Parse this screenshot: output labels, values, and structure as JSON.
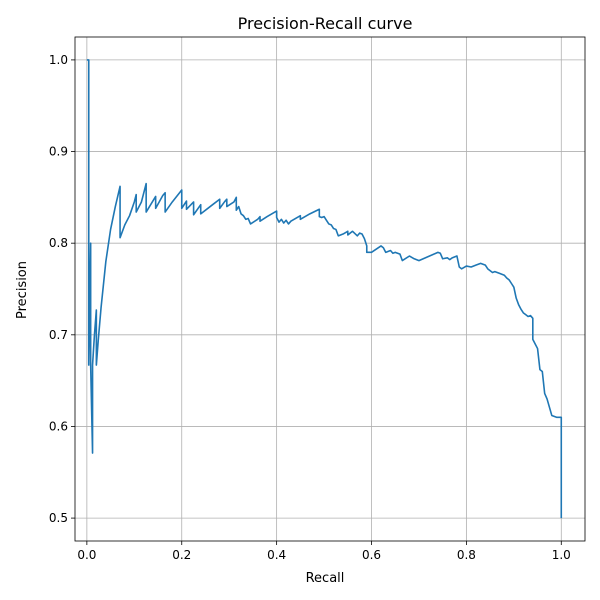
{
  "chart_data": {
    "type": "line",
    "title": "Precision-Recall curve",
    "xlabel": "Recall",
    "ylabel": "Precision",
    "xlim": [
      -0.025,
      1.05
    ],
    "ylim": [
      0.475,
      1.025
    ],
    "grid": true,
    "line_color": "#1f77b4",
    "xticks": [
      0.0,
      0.2,
      0.4,
      0.6,
      0.8,
      1.0
    ],
    "xtick_labels": [
      "0.0",
      "0.2",
      "0.4",
      "0.6",
      "0.8",
      "1.0"
    ],
    "yticks": [
      0.5,
      0.6,
      0.7,
      0.8,
      0.9,
      1.0
    ],
    "ytick_labels": [
      "0.5",
      "0.6",
      "0.7",
      "0.8",
      "0.9",
      "1.0"
    ],
    "series": [
      {
        "points": [
          [
            0.0,
            1.0
          ],
          [
            0.004,
            1.0
          ],
          [
            0.004,
            0.667
          ],
          [
            0.008,
            0.8
          ],
          [
            0.008,
            0.667
          ],
          [
            0.012,
            0.571
          ],
          [
            0.012,
            0.667
          ],
          [
            0.016,
            0.7
          ],
          [
            0.02,
            0.727
          ],
          [
            0.02,
            0.667
          ],
          [
            0.024,
            0.694
          ],
          [
            0.03,
            0.73
          ],
          [
            0.04,
            0.78
          ],
          [
            0.05,
            0.815
          ],
          [
            0.06,
            0.84
          ],
          [
            0.07,
            0.862
          ],
          [
            0.07,
            0.806
          ],
          [
            0.08,
            0.82
          ],
          [
            0.09,
            0.83
          ],
          [
            0.1,
            0.845
          ],
          [
            0.104,
            0.853
          ],
          [
            0.104,
            0.834
          ],
          [
            0.115,
            0.845
          ],
          [
            0.125,
            0.865
          ],
          [
            0.125,
            0.834
          ],
          [
            0.145,
            0.851
          ],
          [
            0.145,
            0.838
          ],
          [
            0.16,
            0.852
          ],
          [
            0.165,
            0.855
          ],
          [
            0.165,
            0.834
          ],
          [
            0.18,
            0.845
          ],
          [
            0.2,
            0.858
          ],
          [
            0.2,
            0.838
          ],
          [
            0.21,
            0.846
          ],
          [
            0.21,
            0.837
          ],
          [
            0.225,
            0.845
          ],
          [
            0.225,
            0.831
          ],
          [
            0.24,
            0.842
          ],
          [
            0.24,
            0.832
          ],
          [
            0.265,
            0.842
          ],
          [
            0.28,
            0.848
          ],
          [
            0.28,
            0.838
          ],
          [
            0.29,
            0.845
          ],
          [
            0.295,
            0.848
          ],
          [
            0.295,
            0.84
          ],
          [
            0.31,
            0.845
          ],
          [
            0.315,
            0.85
          ],
          [
            0.315,
            0.836
          ],
          [
            0.32,
            0.84
          ],
          [
            0.325,
            0.832
          ],
          [
            0.33,
            0.83
          ],
          [
            0.335,
            0.826
          ],
          [
            0.34,
            0.827
          ],
          [
            0.345,
            0.821
          ],
          [
            0.36,
            0.826
          ],
          [
            0.365,
            0.829
          ],
          [
            0.365,
            0.824
          ],
          [
            0.38,
            0.829
          ],
          [
            0.4,
            0.835
          ],
          [
            0.4,
            0.828
          ],
          [
            0.405,
            0.823
          ],
          [
            0.41,
            0.826
          ],
          [
            0.415,
            0.822
          ],
          [
            0.42,
            0.825
          ],
          [
            0.425,
            0.821
          ],
          [
            0.43,
            0.824
          ],
          [
            0.45,
            0.83
          ],
          [
            0.45,
            0.826
          ],
          [
            0.47,
            0.832
          ],
          [
            0.49,
            0.837
          ],
          [
            0.49,
            0.829
          ],
          [
            0.495,
            0.828
          ],
          [
            0.5,
            0.829
          ],
          [
            0.505,
            0.825
          ],
          [
            0.51,
            0.821
          ],
          [
            0.515,
            0.82
          ],
          [
            0.52,
            0.816
          ],
          [
            0.525,
            0.815
          ],
          [
            0.53,
            0.808
          ],
          [
            0.54,
            0.81
          ],
          [
            0.55,
            0.813
          ],
          [
            0.55,
            0.809
          ],
          [
            0.56,
            0.813
          ],
          [
            0.57,
            0.808
          ],
          [
            0.575,
            0.811
          ],
          [
            0.58,
            0.81
          ],
          [
            0.585,
            0.805
          ],
          [
            0.59,
            0.797
          ],
          [
            0.59,
            0.79
          ],
          [
            0.6,
            0.79
          ],
          [
            0.62,
            0.797
          ],
          [
            0.625,
            0.795
          ],
          [
            0.63,
            0.79
          ],
          [
            0.64,
            0.792
          ],
          [
            0.645,
            0.789
          ],
          [
            0.65,
            0.79
          ],
          [
            0.66,
            0.788
          ],
          [
            0.665,
            0.781
          ],
          [
            0.68,
            0.786
          ],
          [
            0.69,
            0.783
          ],
          [
            0.7,
            0.781
          ],
          [
            0.74,
            0.79
          ],
          [
            0.745,
            0.789
          ],
          [
            0.75,
            0.783
          ],
          [
            0.76,
            0.784
          ],
          [
            0.765,
            0.782
          ],
          [
            0.77,
            0.784
          ],
          [
            0.78,
            0.786
          ],
          [
            0.785,
            0.774
          ],
          [
            0.79,
            0.772
          ],
          [
            0.8,
            0.775
          ],
          [
            0.81,
            0.774
          ],
          [
            0.82,
            0.776
          ],
          [
            0.83,
            0.778
          ],
          [
            0.84,
            0.776
          ],
          [
            0.845,
            0.772
          ],
          [
            0.855,
            0.768
          ],
          [
            0.86,
            0.769
          ],
          [
            0.87,
            0.767
          ],
          [
            0.88,
            0.765
          ],
          [
            0.885,
            0.762
          ],
          [
            0.89,
            0.76
          ],
          [
            0.895,
            0.756
          ],
          [
            0.9,
            0.752
          ],
          [
            0.905,
            0.74
          ],
          [
            0.91,
            0.733
          ],
          [
            0.915,
            0.728
          ],
          [
            0.92,
            0.724
          ],
          [
            0.925,
            0.722
          ],
          [
            0.93,
            0.72
          ],
          [
            0.935,
            0.721
          ],
          [
            0.94,
            0.718
          ],
          [
            0.94,
            0.695
          ],
          [
            0.945,
            0.69
          ],
          [
            0.95,
            0.685
          ],
          [
            0.955,
            0.662
          ],
          [
            0.96,
            0.66
          ],
          [
            0.965,
            0.636
          ],
          [
            0.97,
            0.63
          ],
          [
            0.975,
            0.621
          ],
          [
            0.98,
            0.612
          ],
          [
            0.99,
            0.61
          ],
          [
            1.0,
            0.61
          ],
          [
            1.0,
            0.5
          ]
        ]
      }
    ]
  }
}
